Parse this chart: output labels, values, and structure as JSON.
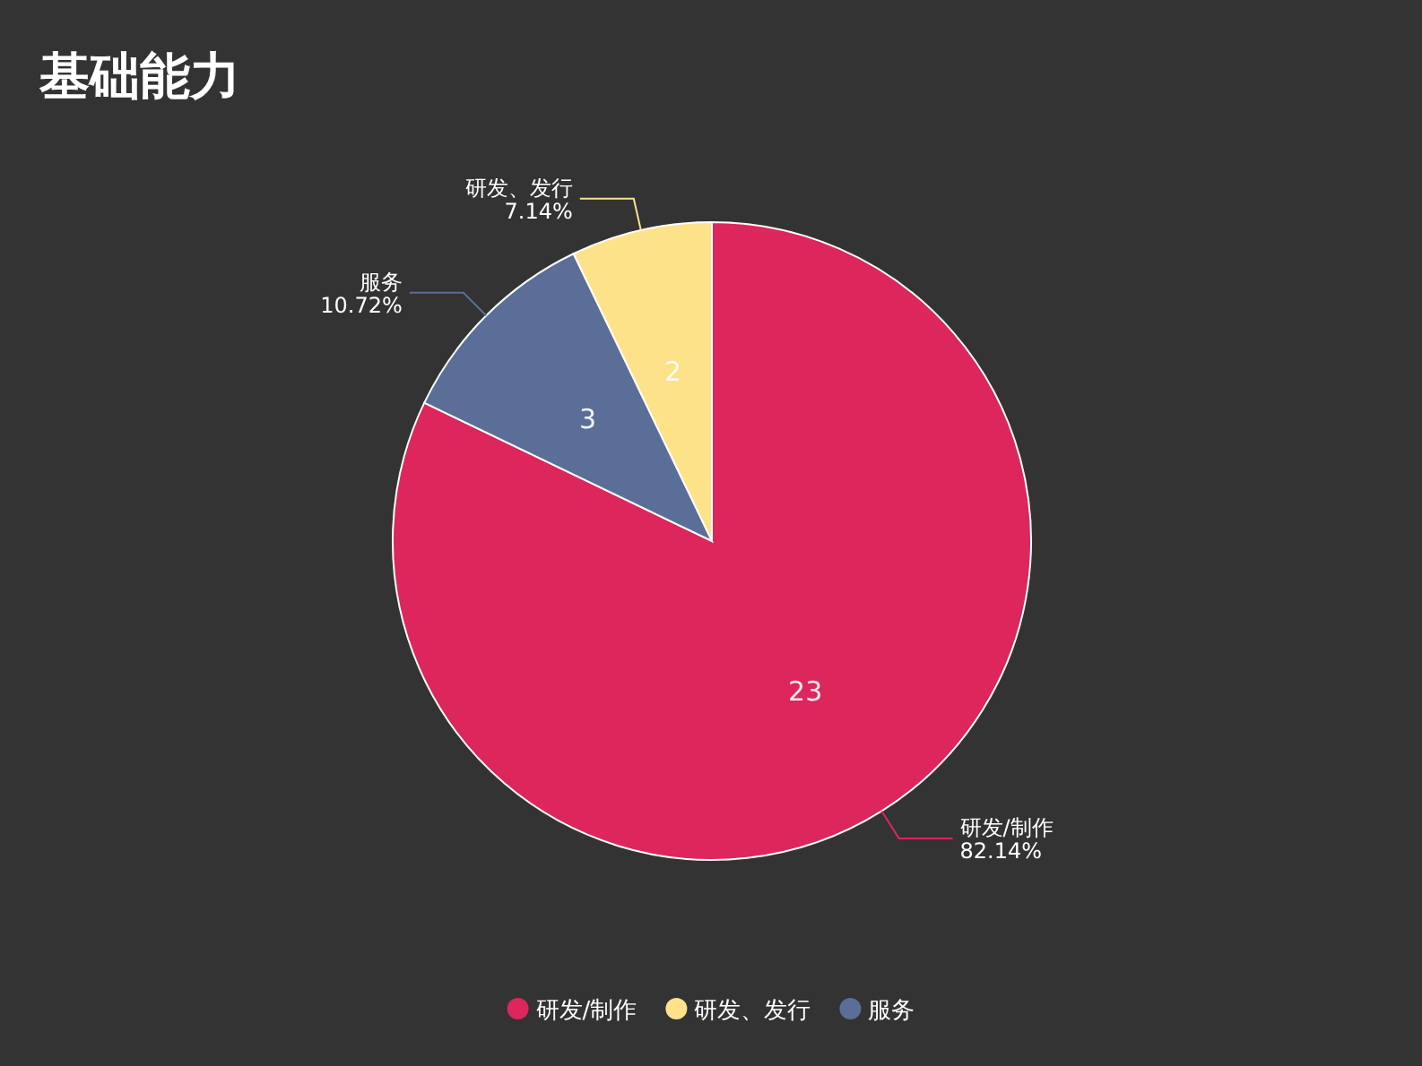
{
  "chart_data": {
    "type": "pie",
    "title": "基础能力",
    "categories": [
      "研发/制作",
      "研发、发行",
      "服务"
    ],
    "values": [
      82.14,
      7.14,
      10.72
    ],
    "colors": [
      "#dc265c",
      "#fde28a",
      "#5b6e98"
    ],
    "value_labels": [
      "82.14%",
      "7.14%",
      "10.72%"
    ],
    "annotations": [
      {
        "text": "23",
        "x": "研发/制作"
      },
      {
        "text": "2",
        "x": "研发、发行"
      },
      {
        "text": "3",
        "x": "服务"
      }
    ],
    "legend": "bottom"
  }
}
